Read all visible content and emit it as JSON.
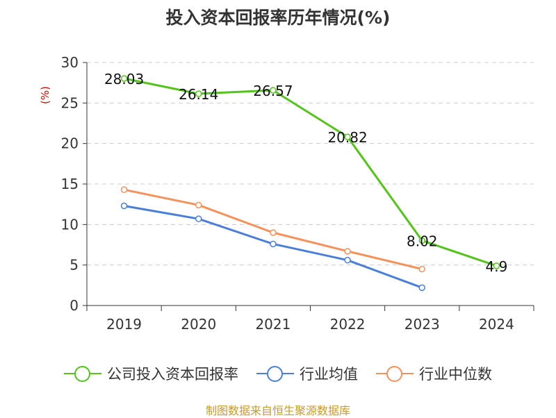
{
  "title": "投入资本回报率历年情况(%)",
  "unit": "(%)",
  "source": "制图数据来自恒生聚源数据库",
  "chart_data": {
    "type": "line",
    "categories": [
      "2019",
      "2020",
      "2021",
      "2022",
      "2023",
      "2024"
    ],
    "ylim": [
      0,
      30
    ],
    "yticks": [
      0,
      5,
      10,
      15,
      20,
      25,
      30
    ],
    "grid": true,
    "legend_position": "bottom",
    "series": [
      {
        "name": "公司投入资本回报率",
        "color": "#52c41a",
        "values": [
          28.03,
          26.14,
          26.57,
          20.82,
          8.02,
          4.9
        ],
        "labels": [
          "28.03",
          "26.14",
          "26.57",
          "20.82",
          "8.02",
          "4.9"
        ]
      },
      {
        "name": "行业均值",
        "color": "#4a7fd9",
        "values": [
          12.3,
          10.7,
          7.6,
          5.6,
          2.2,
          null
        ]
      },
      {
        "name": "行业中位数",
        "color": "#f5915a",
        "values": [
          14.3,
          12.4,
          9.0,
          6.7,
          4.5,
          null
        ]
      }
    ]
  }
}
